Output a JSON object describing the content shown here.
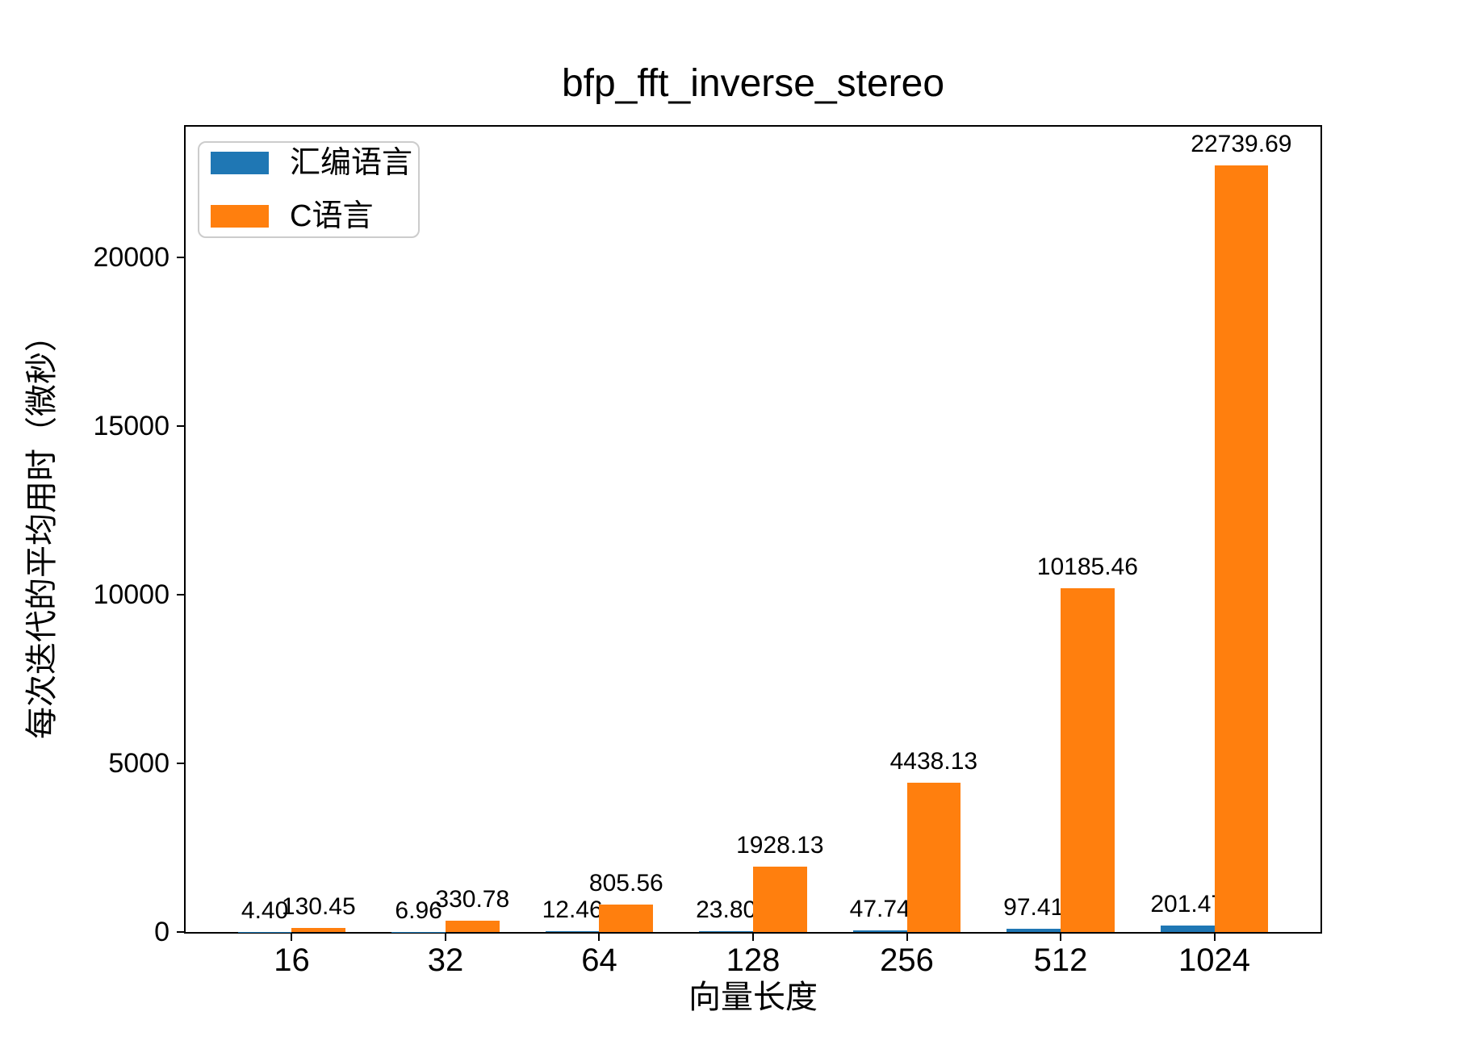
{
  "chart_data": {
    "type": "bar",
    "title": "bfp_fft_inverse_stereo",
    "xlabel": "向量长度",
    "ylabel": "每次迭代的平均用时（微秒）",
    "categories": [
      "16",
      "32",
      "64",
      "128",
      "256",
      "512",
      "1024"
    ],
    "series": [
      {
        "id": "assembly",
        "name": "汇编语言",
        "color": "#1f77b4",
        "values": [
          4.4,
          6.96,
          12.46,
          23.8,
          47.74,
          97.41,
          201.47
        ],
        "labels": [
          "4.40",
          "6.96",
          "12.46",
          "23.80",
          "47.74",
          "97.41",
          "201.47"
        ]
      },
      {
        "id": "c",
        "name": "C语言",
        "color": "#ff7f0e",
        "values": [
          130.45,
          330.78,
          805.56,
          1928.13,
          4438.13,
          10185.46,
          22739.69
        ],
        "labels": [
          "130.45",
          "330.78",
          "805.56",
          "1928.13",
          "4438.13",
          "10185.46",
          "22739.69"
        ]
      }
    ],
    "ylim": [
      0,
      23877
    ],
    "yticks": [
      0,
      5000,
      10000,
      15000,
      20000
    ],
    "ytick_labels": [
      "0",
      "5000",
      "10000",
      "15000",
      "20000"
    ],
    "bar_width": 0.35,
    "grid": false,
    "legend_position": "upper left",
    "background_color": "#ffffff",
    "text_color": "#000000"
  }
}
